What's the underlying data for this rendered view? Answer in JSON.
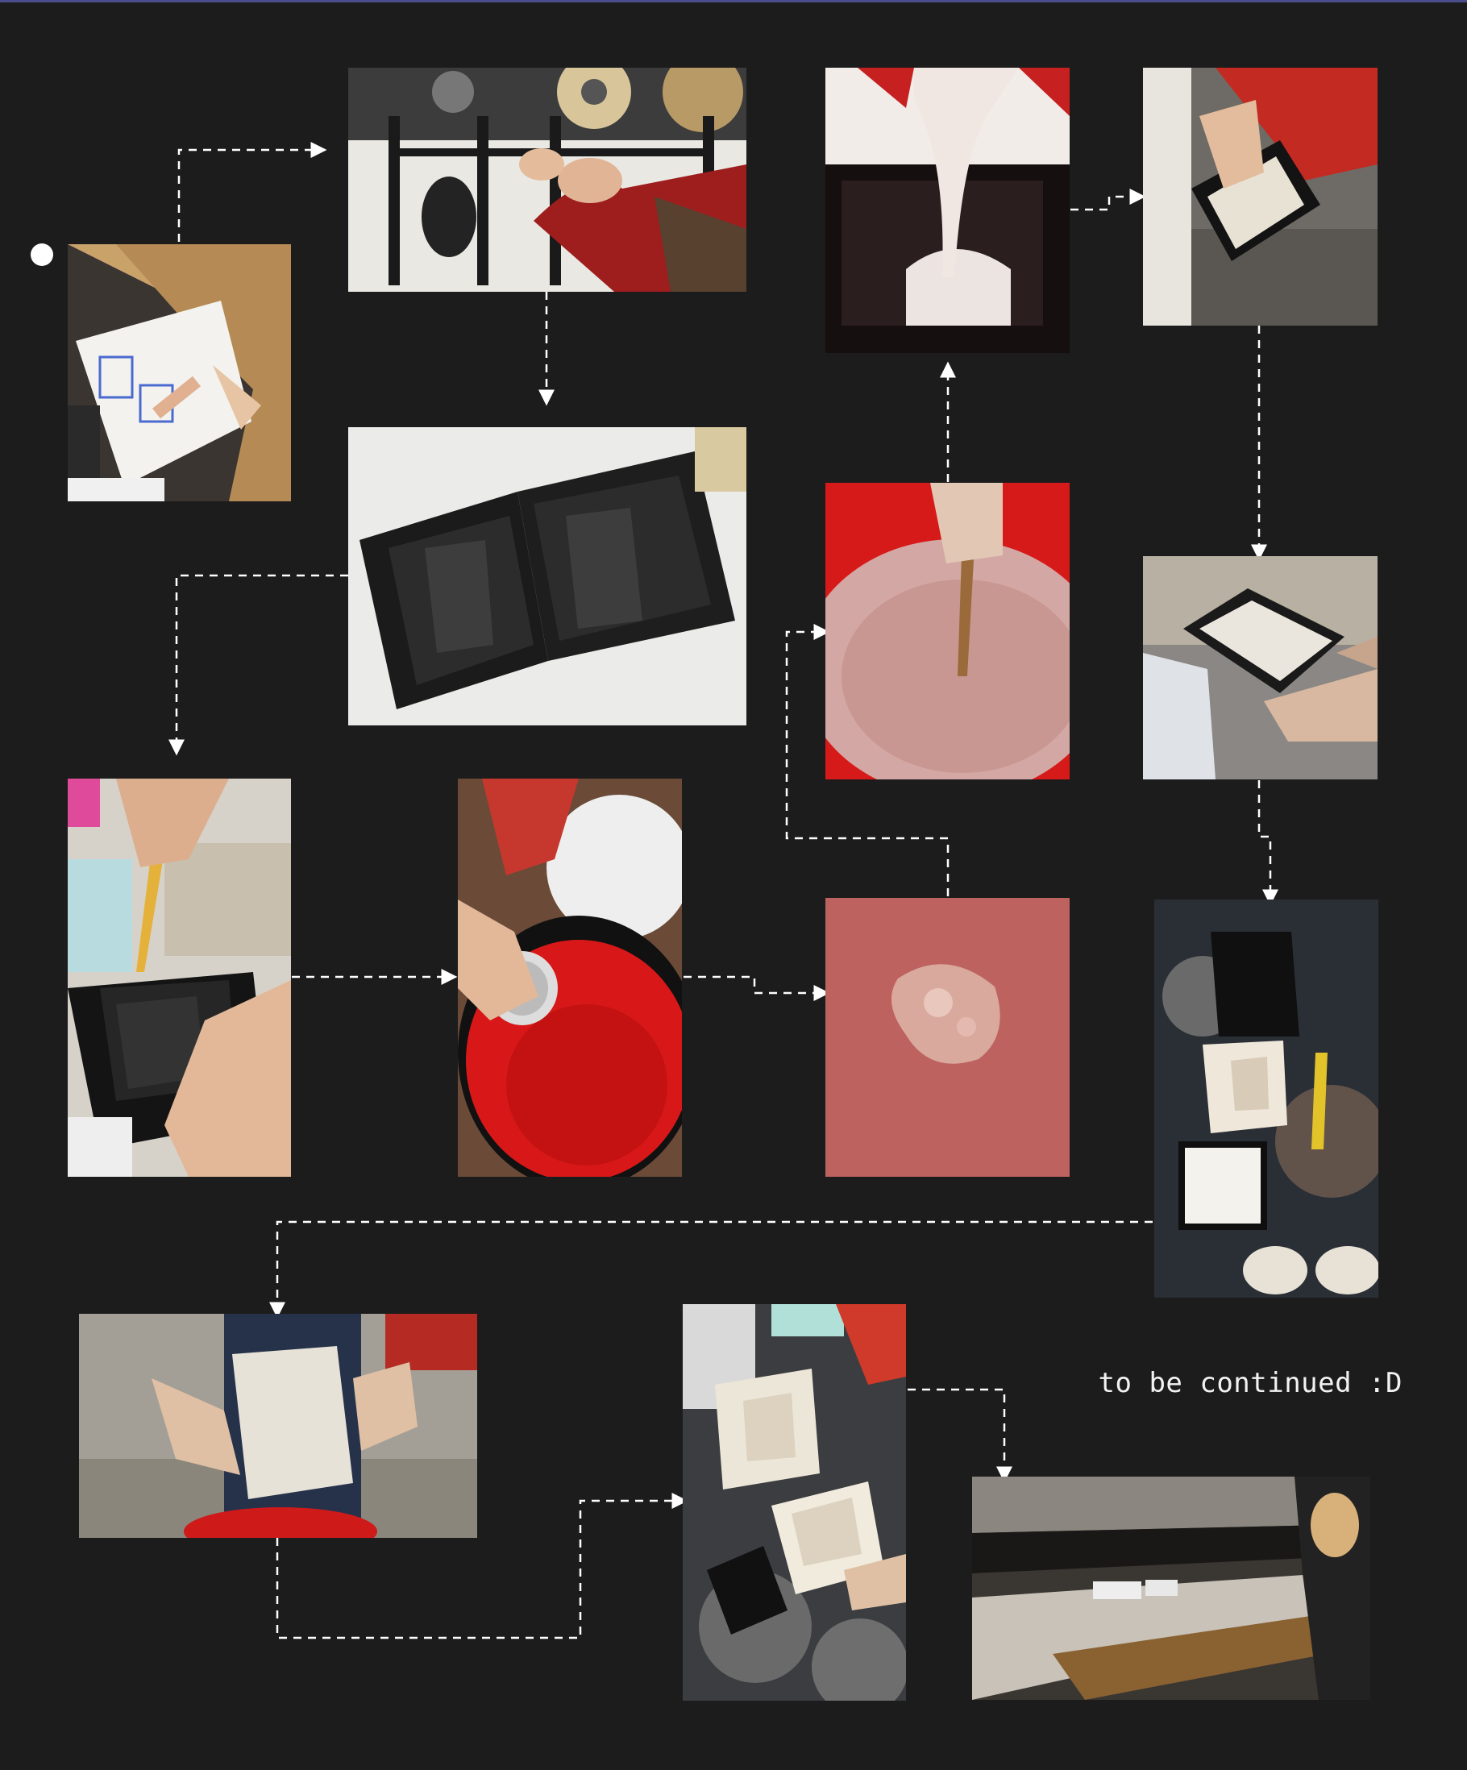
{
  "caption": "to be continued :D",
  "photos": [
    {
      "name": "photo-sketching-design",
      "subject": "hand sketching mold design on paper"
    },
    {
      "name": "photo-3d-printer-setup",
      "subject": "hands loading filament on 3D printer"
    },
    {
      "name": "photo-printed-mold-halves",
      "subject": "3D printed black mold box halves"
    },
    {
      "name": "photo-coating-mold",
      "subject": "brush coating the printed mold"
    },
    {
      "name": "photo-plaster-scoop",
      "subject": "scooping plaster powder over red bucket"
    },
    {
      "name": "photo-powder-in-water",
      "subject": "plaster powder settling in water"
    },
    {
      "name": "photo-mixing-plaster",
      "subject": "stirring liquid plaster with stick"
    },
    {
      "name": "photo-pouring-plaster",
      "subject": "pouring plaster into mold box"
    },
    {
      "name": "photo-demolding-block",
      "subject": "turning out cast plaster block"
    },
    {
      "name": "photo-holding-cast-block",
      "subject": "holding plaster block with printed shell"
    },
    {
      "name": "photo-separated-parts",
      "subject": "separated mold parts on work table"
    },
    {
      "name": "photo-trimming-block",
      "subject": "trimming plaster block with knife"
    },
    {
      "name": "photo-finished-mold",
      "subject": "holding finished plaster mold halves"
    },
    {
      "name": "photo-drying-oven",
      "subject": "placing molds into drying oven"
    }
  ]
}
